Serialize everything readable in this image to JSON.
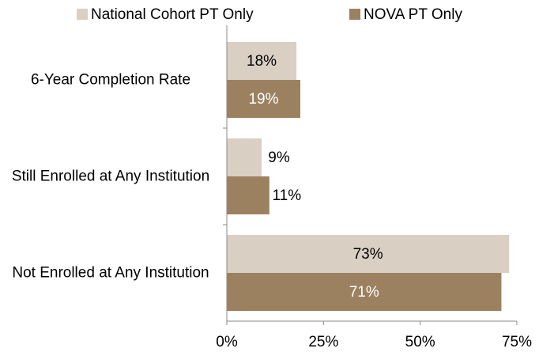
{
  "chart_data": {
    "type": "bar",
    "orientation": "horizontal",
    "categories": [
      "6-Year Completion Rate",
      "Still Enrolled at Any Institution",
      "Not Enrolled at Any Institution"
    ],
    "series": [
      {
        "name": "National Cohort PT Only",
        "color": "#d9cfc3",
        "label_color": "#000000",
        "values": [
          18,
          9,
          73
        ],
        "value_labels": [
          "18%",
          "9%",
          "73%"
        ]
      },
      {
        "name": "NOVA PT Only",
        "color": "#9c8160",
        "label_color": "#ffffff",
        "values": [
          19,
          11,
          71
        ],
        "value_labels": [
          "19%",
          "11%",
          "71%"
        ]
      }
    ],
    "xlim": [
      0,
      75
    ],
    "xticks": [
      {
        "value": 0,
        "label": "0%"
      },
      {
        "value": 25,
        "label": "25%"
      },
      {
        "value": 50,
        "label": "50%"
      },
      {
        "value": 75,
        "label": "75%"
      }
    ],
    "legend": "top"
  }
}
